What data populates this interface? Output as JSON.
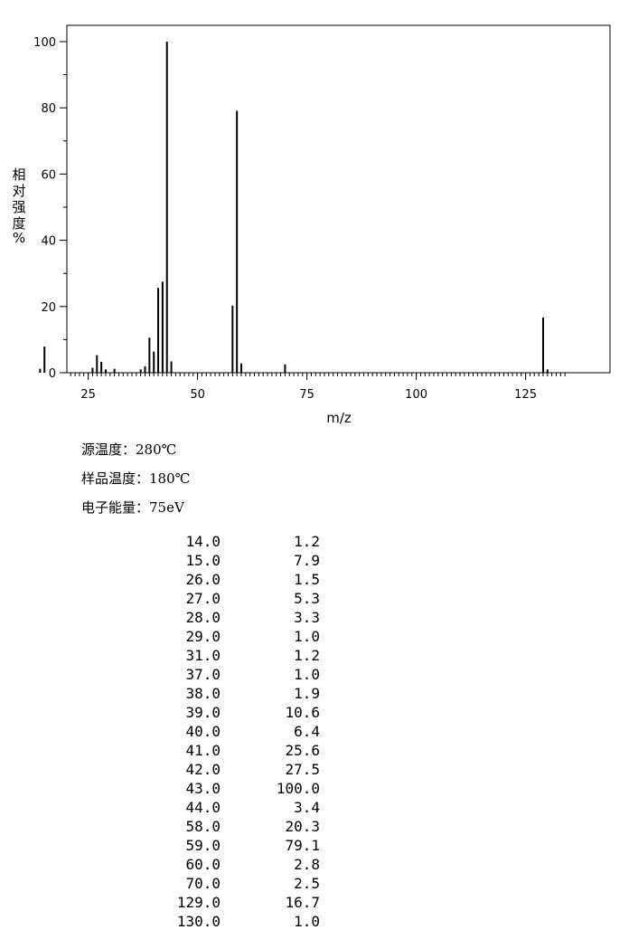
{
  "chart_data": {
    "type": "bar",
    "title": "",
    "xlabel": "m/z",
    "ylabel": "相对强度%",
    "xlim": [
      10,
      135
    ],
    "ylim": [
      0,
      100
    ],
    "xticks": [
      "25",
      "50",
      "75",
      "100",
      "125"
    ],
    "yticks": [
      "0",
      "20",
      "40",
      "60",
      "80",
      "100"
    ],
    "x": [
      14,
      15,
      26,
      27,
      28,
      29,
      31,
      37,
      38,
      39,
      40,
      41,
      42,
      43,
      44,
      58,
      59,
      60,
      70,
      129,
      130
    ],
    "values": [
      1.2,
      7.9,
      1.5,
      5.3,
      3.3,
      1.0,
      1.2,
      1.0,
      1.9,
      10.6,
      6.4,
      25.6,
      27.5,
      100.0,
      3.4,
      20.3,
      79.1,
      2.8,
      2.5,
      16.7,
      1.0
    ]
  },
  "conditions": {
    "source_temp": "源温度：280℃",
    "sample_temp": "样品温度：180℃",
    "electron_energy": "电子能量：75eV"
  },
  "peaks": [
    {
      "mz": "14.0",
      "intensity": "1.2"
    },
    {
      "mz": "15.0",
      "intensity": "7.9"
    },
    {
      "mz": "26.0",
      "intensity": "1.5"
    },
    {
      "mz": "27.0",
      "intensity": "5.3"
    },
    {
      "mz": "28.0",
      "intensity": "3.3"
    },
    {
      "mz": "29.0",
      "intensity": "1.0"
    },
    {
      "mz": "31.0",
      "intensity": "1.2"
    },
    {
      "mz": "37.0",
      "intensity": "1.0"
    },
    {
      "mz": "38.0",
      "intensity": "1.9"
    },
    {
      "mz": "39.0",
      "intensity": "10.6"
    },
    {
      "mz": "40.0",
      "intensity": "6.4"
    },
    {
      "mz": "41.0",
      "intensity": "25.6"
    },
    {
      "mz": "42.0",
      "intensity": "27.5"
    },
    {
      "mz": "43.0",
      "intensity": "100.0"
    },
    {
      "mz": "44.0",
      "intensity": "3.4"
    },
    {
      "mz": "58.0",
      "intensity": "20.3"
    },
    {
      "mz": "59.0",
      "intensity": "79.1"
    },
    {
      "mz": "60.0",
      "intensity": "2.8"
    },
    {
      "mz": "70.0",
      "intensity": "2.5"
    },
    {
      "mz": "129.0",
      "intensity": "16.7"
    },
    {
      "mz": "130.0",
      "intensity": "1.0"
    }
  ]
}
